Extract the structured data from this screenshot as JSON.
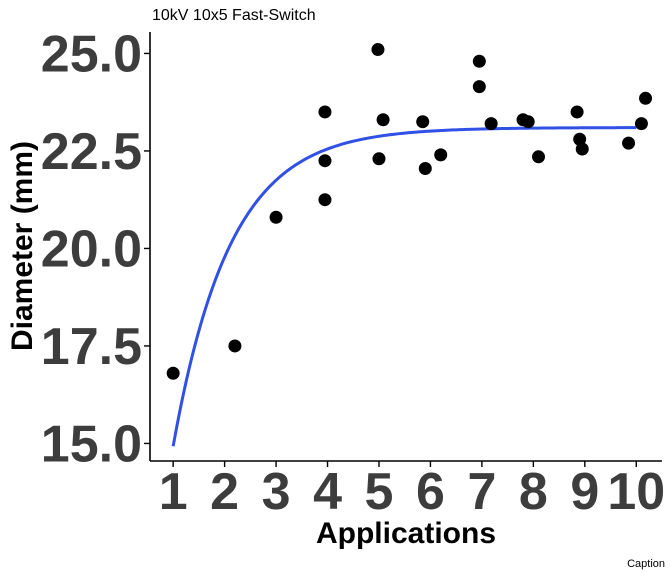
{
  "chart_data": {
    "type": "scatter",
    "title": "10kV 10x5 Fast-Switch",
    "xlabel": "Applications",
    "ylabel": "Diameter (mm)",
    "caption": "Caption",
    "xlim": [
      0.55,
      10.5
    ],
    "ylim": [
      14.55,
      25.55
    ],
    "xticks": [
      1,
      2,
      3,
      4,
      5,
      6,
      7,
      8,
      9,
      10
    ],
    "xtick_labels": [
      "1",
      "2",
      "3",
      "4",
      "5",
      "6",
      "7",
      "8",
      "9",
      "10"
    ],
    "yticks": [
      15.0,
      17.5,
      20.0,
      22.5,
      25.0
    ],
    "ytick_labels": [
      "15.0",
      "17.5",
      "20.0",
      "22.5",
      "25.0"
    ],
    "grid": false,
    "point_color": "#000000",
    "fit_color": "#3050e6",
    "points": [
      {
        "x": 1.0,
        "y": 16.8
      },
      {
        "x": 2.2,
        "y": 17.5
      },
      {
        "x": 3.0,
        "y": 20.8
      },
      {
        "x": 3.95,
        "y": 21.25
      },
      {
        "x": 3.95,
        "y": 22.25
      },
      {
        "x": 3.95,
        "y": 23.5
      },
      {
        "x": 4.98,
        "y": 25.1
      },
      {
        "x": 5.0,
        "y": 22.3
      },
      {
        "x": 5.08,
        "y": 23.3
      },
      {
        "x": 5.85,
        "y": 23.25
      },
      {
        "x": 5.9,
        "y": 22.05
      },
      {
        "x": 6.2,
        "y": 22.4
      },
      {
        "x": 6.95,
        "y": 24.8
      },
      {
        "x": 6.95,
        "y": 24.15
      },
      {
        "x": 7.18,
        "y": 23.2
      },
      {
        "x": 7.8,
        "y": 23.3
      },
      {
        "x": 7.9,
        "y": 23.25
      },
      {
        "x": 8.1,
        "y": 22.35
      },
      {
        "x": 8.85,
        "y": 23.5
      },
      {
        "x": 8.9,
        "y": 22.8
      },
      {
        "x": 8.95,
        "y": 22.55
      },
      {
        "x": 9.85,
        "y": 22.7
      },
      {
        "x": 10.1,
        "y": 23.2
      },
      {
        "x": 10.18,
        "y": 23.85
      }
    ],
    "fit": {
      "model": "y = a - b * exp(-k * x)",
      "a": 23.1,
      "b": 20.1,
      "k": 0.9,
      "x_range": [
        1.0,
        10.0
      ]
    }
  }
}
